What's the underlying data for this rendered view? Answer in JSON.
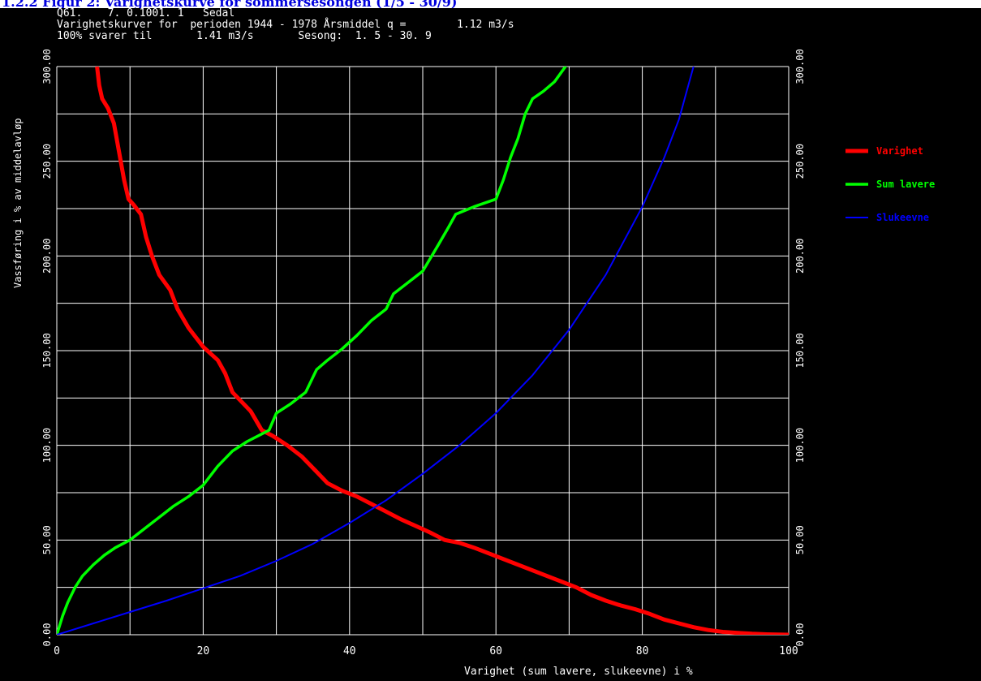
{
  "heading": "1.2.2 Figur 2: Varighetskurve for sommersesongen (1/5 - 30/9)",
  "header_lines": [
    "Q61.    7. 0.1001. 1   Sedal",
    "Varighetskurver for  perioden 1944 - 1978 Årsmiddel q =        1.12 m3/s",
    "100% svarer til       1.41 m3/s       Sesong:  1. 5 - 30. 9"
  ],
  "colors": {
    "background": "#000000",
    "grid": "#ffffff",
    "varighet": "#ff0000",
    "sum_lavere": "#00ff00",
    "slukeevne": "#0000ff",
    "heading_text": "#0000dd"
  },
  "chart_data": {
    "type": "line",
    "xlabel": "Varighet (sum lavere, slukeevne) i %",
    "ylabel": "Vassføring i % av middelavløp",
    "xlim": [
      0,
      100
    ],
    "ylim": [
      0,
      300
    ],
    "x_ticks": [
      "0",
      "20",
      "40",
      "60",
      "80",
      "100"
    ],
    "y_ticks": [
      "0.00",
      "50.00",
      "100.00",
      "150.00",
      "200.00",
      "250.00",
      "300.00"
    ],
    "grid": true,
    "legend_position": "right",
    "series": [
      {
        "name": "Varighet",
        "color": "#ff0000",
        "points": [
          [
            5.5,
            300
          ],
          [
            5.8,
            290
          ],
          [
            6.2,
            283
          ],
          [
            7,
            278
          ],
          [
            7.8,
            270
          ],
          [
            8.5,
            255
          ],
          [
            9.2,
            240
          ],
          [
            9.8,
            230
          ],
          [
            10.5,
            227
          ],
          [
            11.5,
            222
          ],
          [
            12.2,
            210
          ],
          [
            13,
            200
          ],
          [
            14,
            190
          ],
          [
            15.5,
            182
          ],
          [
            16.5,
            172
          ],
          [
            18,
            162
          ],
          [
            20,
            152
          ],
          [
            22,
            145
          ],
          [
            23,
            138
          ],
          [
            24,
            128
          ],
          [
            25.5,
            122
          ],
          [
            26.5,
            118
          ],
          [
            28,
            108
          ],
          [
            29.5,
            105
          ],
          [
            31.5,
            100
          ],
          [
            33.5,
            94
          ],
          [
            35.5,
            86
          ],
          [
            37,
            80
          ],
          [
            39,
            76
          ],
          [
            41,
            73
          ],
          [
            43,
            69
          ],
          [
            45,
            65
          ],
          [
            47,
            61
          ],
          [
            49,
            57.5
          ],
          [
            51,
            54
          ],
          [
            53,
            50
          ],
          [
            55,
            48.5
          ],
          [
            57,
            46
          ],
          [
            59,
            43
          ],
          [
            61,
            40
          ],
          [
            63,
            37
          ],
          [
            65,
            34
          ],
          [
            67,
            31
          ],
          [
            69,
            28
          ],
          [
            71,
            25
          ],
          [
            73,
            21
          ],
          [
            75,
            18
          ],
          [
            77,
            15.5
          ],
          [
            79,
            13.5
          ],
          [
            81,
            11
          ],
          [
            83,
            8
          ],
          [
            85,
            6
          ],
          [
            87,
            4
          ],
          [
            89,
            2.5
          ],
          [
            91,
            1.5
          ],
          [
            93,
            1
          ],
          [
            95,
            0.5
          ],
          [
            97,
            0.2
          ],
          [
            100,
            0
          ]
        ]
      },
      {
        "name": "Sum lavere",
        "color": "#00ff00",
        "points": [
          [
            0,
            0
          ],
          [
            0.8,
            10
          ],
          [
            1.5,
            17
          ],
          [
            2.5,
            25
          ],
          [
            3.5,
            31
          ],
          [
            5,
            37
          ],
          [
            6.5,
            42
          ],
          [
            8,
            46
          ],
          [
            10,
            50
          ],
          [
            12,
            56
          ],
          [
            14,
            62
          ],
          [
            16,
            68
          ],
          [
            18,
            73
          ],
          [
            20,
            79
          ],
          [
            22,
            89
          ],
          [
            24,
            97
          ],
          [
            26,
            102
          ],
          [
            28,
            106
          ],
          [
            29,
            108
          ],
          [
            30,
            117
          ],
          [
            32,
            122
          ],
          [
            34,
            128
          ],
          [
            35.5,
            140
          ],
          [
            37,
            145
          ],
          [
            39,
            151
          ],
          [
            41,
            158
          ],
          [
            43,
            166
          ],
          [
            45,
            172
          ],
          [
            46,
            180
          ],
          [
            48,
            186
          ],
          [
            50,
            192
          ],
          [
            52,
            205
          ],
          [
            53.5,
            215
          ],
          [
            54.5,
            222
          ],
          [
            57,
            226
          ],
          [
            60,
            230
          ],
          [
            61,
            240
          ],
          [
            62,
            252
          ],
          [
            63,
            262
          ],
          [
            64,
            275
          ],
          [
            65,
            283
          ],
          [
            66.5,
            287
          ],
          [
            68,
            292
          ],
          [
            69.5,
            300
          ],
          [
            70,
            310
          ]
        ]
      },
      {
        "name": "Slukeevne",
        "color": "#0000ff",
        "points": [
          [
            0,
            0
          ],
          [
            5,
            6
          ],
          [
            10,
            12
          ],
          [
            15,
            18
          ],
          [
            20,
            24.5
          ],
          [
            25,
            31
          ],
          [
            30,
            39
          ],
          [
            35,
            48
          ],
          [
            40,
            59
          ],
          [
            45,
            71
          ],
          [
            50,
            85
          ],
          [
            55,
            100
          ],
          [
            60,
            117
          ],
          [
            65,
            137
          ],
          [
            70,
            161
          ],
          [
            75,
            190
          ],
          [
            80,
            226
          ],
          [
            83,
            252
          ],
          [
            85,
            272
          ],
          [
            87,
            300
          ],
          [
            88.5,
            320
          ]
        ]
      }
    ]
  }
}
